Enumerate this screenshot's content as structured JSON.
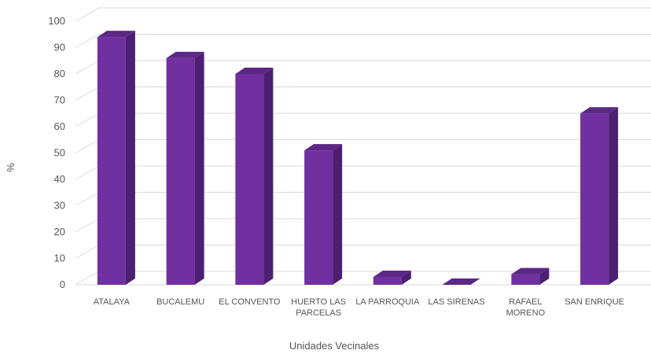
{
  "chart_data": {
    "type": "bar",
    "style": "3d-column",
    "categories": [
      [
        "ATALAYA"
      ],
      [
        "BUCALEMU"
      ],
      [
        "EL CONVENTO"
      ],
      [
        "HUERTO LAS",
        "PARCELAS"
      ],
      [
        "LA PARROQUIA"
      ],
      [
        "LAS SIRENAS"
      ],
      [
        "RAFAEL",
        "MORENO"
      ],
      [
        "SAN ENRIQUE"
      ]
    ],
    "values": [
      94,
      86,
      80,
      51,
      3,
      0,
      4,
      65
    ],
    "title": "",
    "xlabel": "Unidades Vecinales",
    "ylabel": "%",
    "ylim": [
      0,
      100
    ],
    "yticks": [
      "0",
      "10",
      "20",
      "30",
      "40",
      "50",
      "60",
      "70",
      "80",
      "90",
      "100"
    ],
    "grid": true,
    "legend": "none",
    "colors": {
      "front": "#7030a0",
      "side": "#4d1f72",
      "top": "#5c2785",
      "grid": "#d9d9d9"
    }
  }
}
